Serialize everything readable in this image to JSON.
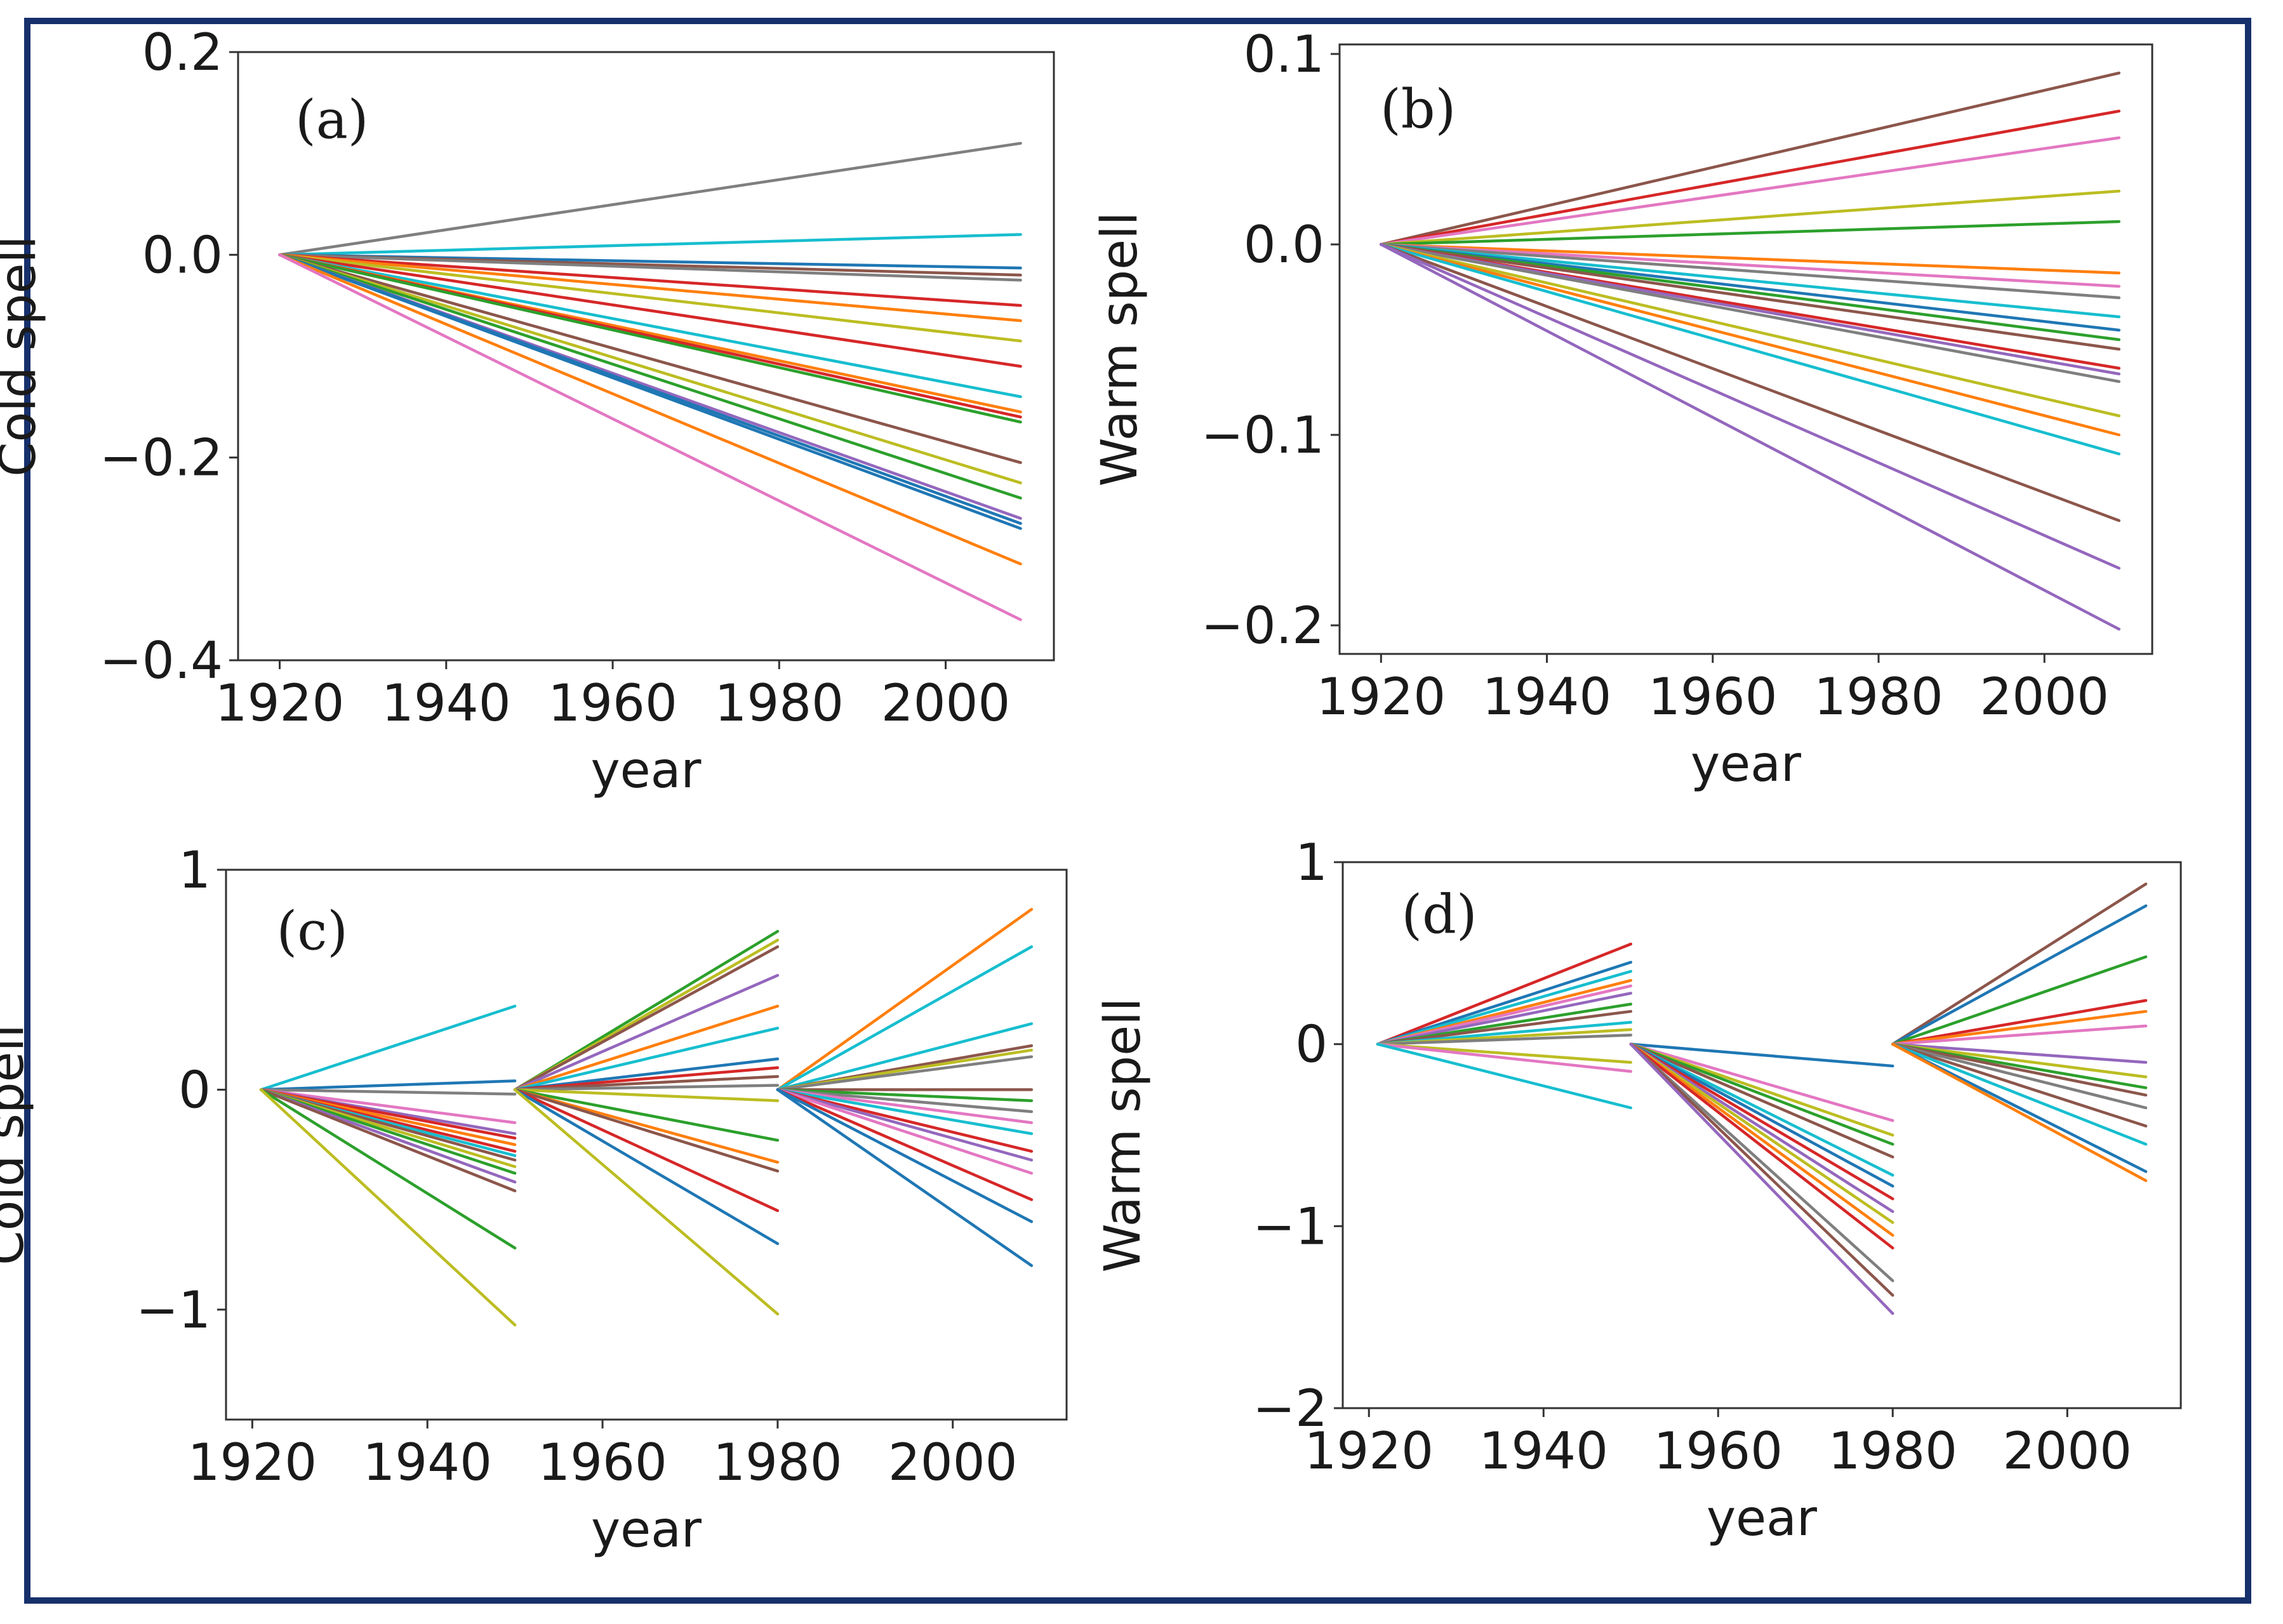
{
  "palette": [
    "#1f77b4",
    "#ff7f0e",
    "#2ca02c",
    "#d62728",
    "#9467bd",
    "#8c564b",
    "#e377c2",
    "#7f7f7f",
    "#bcbd22",
    "#17becf"
  ],
  "chart_data": [
    {
      "type": "line",
      "panel_label": "(a)",
      "xlabel": "year",
      "ylabel": "Cold spell",
      "xlim": [
        1915,
        2013
      ],
      "ylim": [
        -0.4,
        0.2
      ],
      "xticks": [
        1920,
        1940,
        1960,
        1980,
        2000
      ],
      "yticks": [
        -0.4,
        -0.2,
        0.0,
        0.2
      ],
      "xtick_labels": [
        "1920",
        "1940",
        "1960",
        "1980",
        "2000"
      ],
      "ytick_labels": [
        "−0.4",
        "−0.2",
        "0.0",
        "0.2"
      ],
      "segments": [
        {
          "x0": 1920,
          "x1": 2009,
          "start_value": 0,
          "end_values": [
            0.11,
            0.02,
            -0.013,
            -0.02,
            -0.025,
            -0.05,
            -0.065,
            -0.085,
            -0.11,
            -0.14,
            -0.155,
            -0.16,
            -0.165,
            -0.205,
            -0.225,
            -0.24,
            -0.26,
            -0.265,
            -0.27,
            -0.305,
            -0.36
          ],
          "colors": [
            "#7f7f7f",
            "#17becf",
            "#1f77b4",
            "#8c564b",
            "#7f7f7f",
            "#d62728",
            "#ff7f0e",
            "#bcbd22",
            "#d62728",
            "#17becf",
            "#ff7f0e",
            "#d62728",
            "#2ca02c",
            "#8c564b",
            "#bcbd22",
            "#2ca02c",
            "#9467bd",
            "#1f77b4",
            "#1f77b4",
            "#ff7f0e",
            "#e377c2"
          ]
        }
      ]
    },
    {
      "type": "line",
      "panel_label": "(b)",
      "xlabel": "year",
      "ylabel": "Warm spell",
      "xlim": [
        1915,
        2013
      ],
      "ylim": [
        -0.215,
        0.105
      ],
      "xticks": [
        1920,
        1940,
        1960,
        1980,
        2000
      ],
      "yticks": [
        -0.2,
        -0.1,
        0.0,
        0.1
      ],
      "xtick_labels": [
        "1920",
        "1940",
        "1960",
        "1980",
        "2000"
      ],
      "ytick_labels": [
        "−0.2",
        "−0.1",
        "0.0",
        "0.1"
      ],
      "segments": [
        {
          "x0": 1920,
          "x1": 2009,
          "start_value": 0,
          "end_values": [
            0.09,
            0.07,
            0.056,
            0.028,
            0.012,
            -0.015,
            -0.022,
            -0.028,
            -0.038,
            -0.045,
            -0.05,
            -0.055,
            -0.065,
            -0.068,
            -0.072,
            -0.09,
            -0.1,
            -0.11,
            -0.145,
            -0.17,
            -0.202
          ],
          "colors": [
            "#8c564b",
            "#d62728",
            "#e377c2",
            "#bcbd22",
            "#2ca02c",
            "#ff7f0e",
            "#e377c2",
            "#7f7f7f",
            "#17becf",
            "#1f77b4",
            "#2ca02c",
            "#8c564b",
            "#d62728",
            "#9467bd",
            "#7f7f7f",
            "#bcbd22",
            "#ff7f0e",
            "#17becf",
            "#8c564b",
            "#9467bd",
            "#9467bd"
          ]
        }
      ]
    },
    {
      "type": "line",
      "panel_label": "(c)",
      "xlabel": "year",
      "ylabel": "Cold spell",
      "xlim": [
        1917,
        2013
      ],
      "ylim": [
        -1.5,
        1.0
      ],
      "xticks": [
        1920,
        1940,
        1960,
        1980,
        2000
      ],
      "yticks": [
        -1,
        0,
        1
      ],
      "xtick_labels": [
        "1920",
        "1940",
        "1960",
        "1980",
        "2000"
      ],
      "ytick_labels": [
        "−1",
        "0",
        "1"
      ],
      "segments": [
        {
          "x0": 1921,
          "x1": 1950,
          "start_value": 0,
          "end_values": [
            0.38,
            0.04,
            -0.02,
            -0.15,
            -0.2,
            -0.22,
            -0.25,
            -0.28,
            -0.3,
            -0.32,
            -0.35,
            -0.38,
            -0.42,
            -0.46,
            -0.72,
            -1.07
          ],
          "colors": [
            "#17becf",
            "#1f77b4",
            "#7f7f7f",
            "#e377c2",
            "#9467bd",
            "#d62728",
            "#ff7f0e",
            "#d62728",
            "#17becf",
            "#8c564b",
            "#bcbd22",
            "#2ca02c",
            "#9467bd",
            "#8c564b",
            "#2ca02c",
            "#bcbd22"
          ]
        },
        {
          "x0": 1950,
          "x1": 1980,
          "start_value": 0,
          "end_values": [
            0.72,
            0.68,
            0.65,
            0.52,
            0.38,
            0.28,
            0.14,
            0.1,
            0.06,
            0.02,
            -0.05,
            -0.23,
            -0.33,
            -0.37,
            -0.55,
            -0.7,
            -1.02
          ],
          "colors": [
            "#2ca02c",
            "#bcbd22",
            "#8c564b",
            "#9467bd",
            "#ff7f0e",
            "#17becf",
            "#1f77b4",
            "#d62728",
            "#8c564b",
            "#7f7f7f",
            "#bcbd22",
            "#2ca02c",
            "#ff7f0e",
            "#8c564b",
            "#d62728",
            "#1f77b4",
            "#bcbd22"
          ]
        },
        {
          "x0": 1980,
          "x1": 2009,
          "start_value": 0,
          "end_values": [
            0.82,
            0.65,
            0.3,
            0.2,
            0.18,
            0.15,
            0.0,
            -0.05,
            -0.1,
            -0.15,
            -0.2,
            -0.28,
            -0.32,
            -0.38,
            -0.5,
            -0.6,
            -0.8
          ],
          "colors": [
            "#ff7f0e",
            "#17becf",
            "#17becf",
            "#8c564b",
            "#bcbd22",
            "#7f7f7f",
            "#8c564b",
            "#2ca02c",
            "#7f7f7f",
            "#e377c2",
            "#17becf",
            "#d62728",
            "#9467bd",
            "#e377c2",
            "#d62728",
            "#1f77b4",
            "#1f77b4"
          ]
        }
      ]
    },
    {
      "type": "line",
      "panel_label": "(d)",
      "xlabel": "year",
      "ylabel": "Warm spell",
      "xlim": [
        1917,
        2013
      ],
      "ylim": [
        -2.0,
        1.0
      ],
      "xticks": [
        1920,
        1940,
        1960,
        1980,
        2000
      ],
      "yticks": [
        -2,
        -1,
        0,
        1
      ],
      "xtick_labels": [
        "1920",
        "1940",
        "1960",
        "1980",
        "2000"
      ],
      "ytick_labels": [
        "−2",
        "−1",
        "0",
        "1"
      ],
      "segments": [
        {
          "x0": 1921,
          "x1": 1950,
          "start_value": 0,
          "end_values": [
            0.55,
            0.45,
            0.4,
            0.35,
            0.32,
            0.28,
            0.22,
            0.18,
            0.12,
            0.08,
            0.05,
            -0.1,
            -0.15,
            -0.35
          ],
          "colors": [
            "#d62728",
            "#1f77b4",
            "#17becf",
            "#ff7f0e",
            "#e377c2",
            "#9467bd",
            "#2ca02c",
            "#8c564b",
            "#17becf",
            "#bcbd22",
            "#7f7f7f",
            "#bcbd22",
            "#e377c2",
            "#17becf"
          ]
        },
        {
          "x0": 1950,
          "x1": 1980,
          "start_value": 0,
          "end_values": [
            -0.12,
            -0.42,
            -0.5,
            -0.55,
            -0.62,
            -0.72,
            -0.78,
            -0.85,
            -0.92,
            -0.98,
            -1.05,
            -1.12,
            -1.3,
            -1.38,
            -1.48
          ],
          "colors": [
            "#1f77b4",
            "#e377c2",
            "#bcbd22",
            "#2ca02c",
            "#8c564b",
            "#17becf",
            "#1f77b4",
            "#d62728",
            "#9467bd",
            "#bcbd22",
            "#ff7f0e",
            "#d62728",
            "#7f7f7f",
            "#8c564b",
            "#9467bd"
          ]
        },
        {
          "x0": 1980,
          "x1": 2009,
          "start_value": 0,
          "end_values": [
            0.88,
            0.76,
            0.48,
            0.24,
            0.18,
            0.1,
            -0.1,
            -0.18,
            -0.24,
            -0.28,
            -0.35,
            -0.45,
            -0.55,
            -0.7,
            -0.75
          ],
          "colors": [
            "#8c564b",
            "#1f77b4",
            "#2ca02c",
            "#d62728",
            "#ff7f0e",
            "#e377c2",
            "#9467bd",
            "#bcbd22",
            "#2ca02c",
            "#8c564b",
            "#7f7f7f",
            "#8c564b",
            "#17becf",
            "#1f77b4",
            "#ff7f0e"
          ]
        }
      ]
    }
  ]
}
